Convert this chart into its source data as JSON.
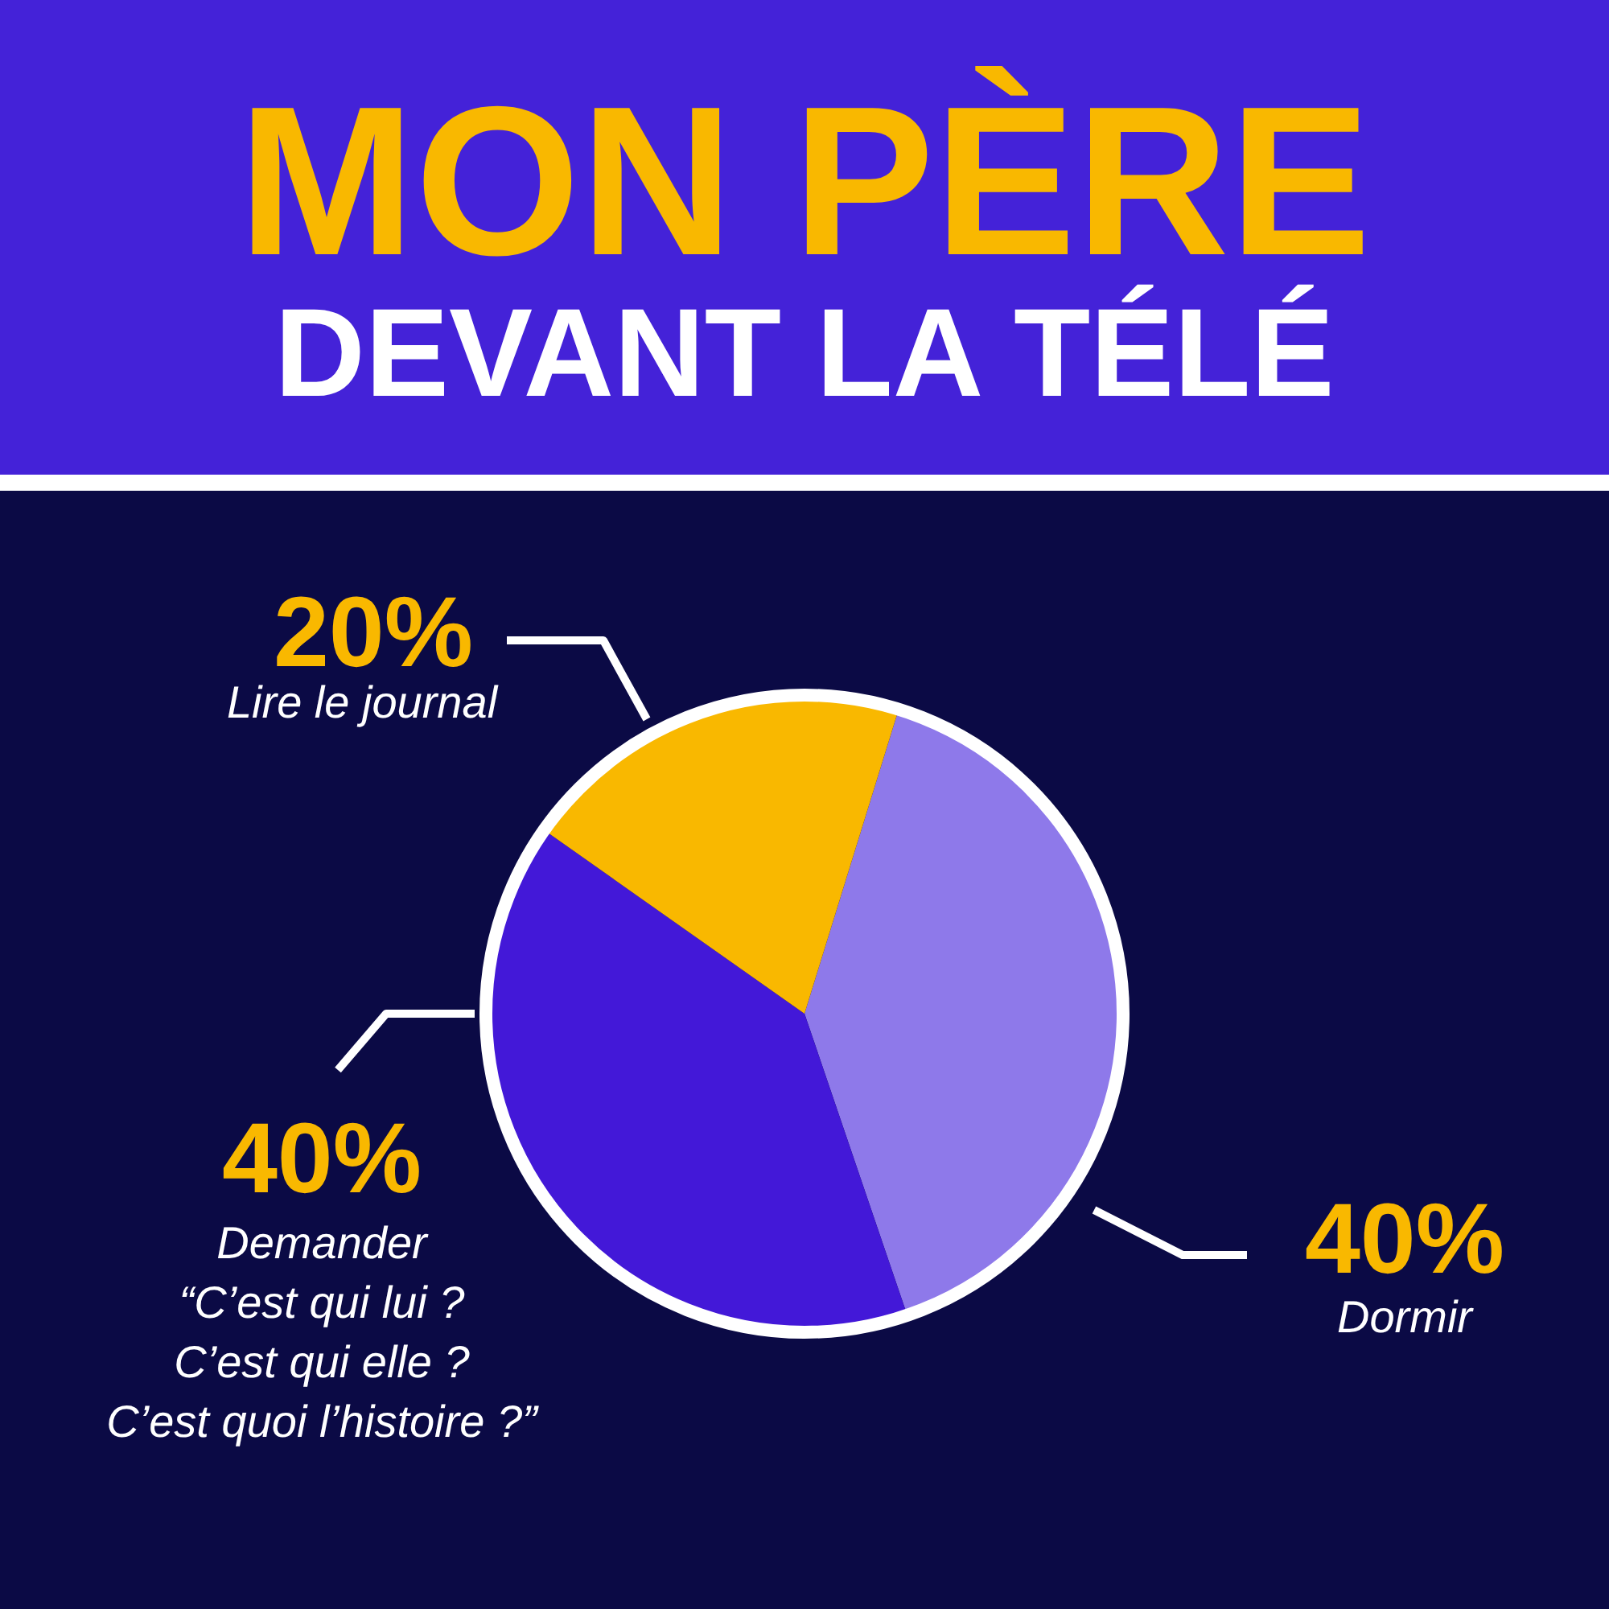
{
  "chart_data": {
    "type": "pie",
    "title": "MON PÈRE",
    "subtitle": "DEVANT LA TÉLÉ",
    "categories": [
      "Dormir",
      "Demander\n“C’est qui lui ?\nC’est qui elle ?\nC’est quoi l’histoire ?”",
      "Lire le journal"
    ],
    "values": [
      40,
      40,
      20
    ],
    "value_labels": [
      "40%",
      "40%",
      "20%"
    ],
    "colors": [
      "#8e79ea",
      "#4318d8",
      "#f9b800"
    ]
  }
}
